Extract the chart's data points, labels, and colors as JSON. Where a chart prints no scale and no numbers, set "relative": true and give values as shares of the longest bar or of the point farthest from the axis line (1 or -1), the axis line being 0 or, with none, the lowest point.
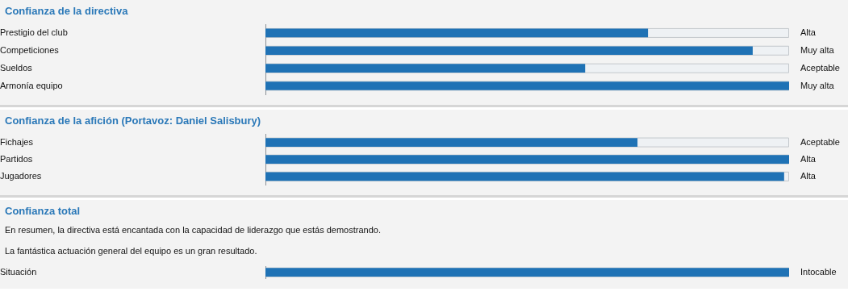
{
  "chart_data": [
    {
      "type": "bar",
      "orientation": "horizontal",
      "relative": true,
      "title": "Confianza de la directiva",
      "categories": [
        "Prestigio del club",
        "Competiciones",
        "Sueldos",
        "Armonía equipo"
      ],
      "y2_categories": [
        "Alta",
        "Muy alta",
        "Aceptable",
        "Muy alta"
      ],
      "values": [
        0.73,
        0.93,
        0.61,
        1
      ],
      "color": "#1f72b5"
    },
    {
      "type": "bar",
      "orientation": "horizontal",
      "relative": true,
      "title": "Confianza de la afición (Portavoz: Daniel Salisbury)",
      "categories": [
        "Fichajes",
        "Partidos",
        "Jugadores"
      ],
      "y2_categories": [
        "Aceptable",
        "Alta",
        "Alta"
      ],
      "values": [
        0.71,
        1,
        0.99
      ],
      "color": "#1f72b5"
    },
    {
      "type": "bar",
      "orientation": "horizontal",
      "relative": true,
      "title": "Confianza total",
      "annotations": [
        "En resumen, la directiva está encantada con la capacidad de liderazgo que estás demostrando.",
        "La fantástica actuación general del equipo es un gran resultado."
      ],
      "categories": [
        "Situación"
      ],
      "y2_categories": [
        "Intocable"
      ],
      "values": [
        1
      ],
      "color": "#1f72b5"
    }
  ]
}
